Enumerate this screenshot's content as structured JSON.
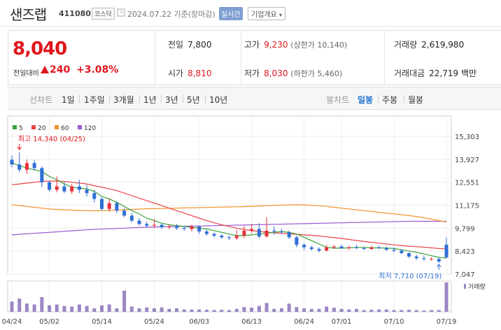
{
  "header": {
    "name": "샌즈랩",
    "code": "411080",
    "market": "코스닥",
    "date": "2024.07.22 기준(장마감)",
    "realtime": "실시간",
    "company_info": "기업개요"
  },
  "price": {
    "current": "8,040",
    "change_label": "전일대비",
    "change": "240",
    "change_pct": "+3.08%"
  },
  "stats": {
    "prev_label": "전일",
    "prev": "7,800",
    "high_label": "고가",
    "high": "9,230",
    "upper_limit": "(상한가 10,140)",
    "volume_label": "거래량",
    "volume": "2,619,980",
    "open_label": "시가",
    "open": "8,810",
    "low_label": "저가",
    "low": "8,030",
    "lower_limit": "(하한가 5,460)",
    "amount_label": "거래대금",
    "amount": "22,719",
    "amount_unit": "백만"
  },
  "period": {
    "line_label": "선차트",
    "line_items": [
      "1일",
      "1주일",
      "3개월",
      "1년",
      "3년",
      "5년",
      "10년"
    ],
    "candle_label": "봉차트",
    "candle_items": [
      "일봉",
      "주봉",
      "월봉"
    ],
    "selected": "일봉"
  },
  "chart_data": {
    "type": "candlestick",
    "legend": [
      "5",
      "20",
      "60",
      "120"
    ],
    "legend_colors": [
      "#3aa13a",
      "#e84545",
      "#f0932b",
      "#9b59d0"
    ],
    "up_color": "#e8303a",
    "down_color": "#2f6fd6",
    "volume_color": "#9b86c4",
    "y_ticks": [
      "15,303",
      "13,927",
      "12,551",
      "11,175",
      "9,799",
      "8,423",
      "7,047"
    ],
    "ylim": [
      7047,
      15303
    ],
    "x_labels": [
      "04/24",
      "05/02",
      "05/14",
      "05/24",
      "06/03",
      "06/13",
      "06/24",
      "07/01",
      "07/10",
      "07/19"
    ],
    "x_label_index": [
      0,
      5,
      12,
      19,
      25,
      32,
      39,
      44,
      51,
      58
    ],
    "high_note": "최고 14,340 (04/25)",
    "low_note": "최저 7,710 (07/19)",
    "volume_legend": "거래량",
    "candles": [
      [
        13900,
        14150,
        13450,
        13620
      ],
      [
        13620,
        14340,
        13150,
        13300
      ],
      [
        13300,
        13920,
        13050,
        13700
      ],
      [
        13700,
        13900,
        13250,
        13400
      ],
      [
        13400,
        13500,
        12250,
        12550
      ],
      [
        12550,
        12650,
        12000,
        12100
      ],
      [
        12100,
        12900,
        11950,
        12300
      ],
      [
        12300,
        12550,
        11900,
        12000
      ],
      [
        12000,
        12450,
        11850,
        12300
      ],
      [
        12300,
        12700,
        11900,
        12100
      ],
      [
        12100,
        12400,
        11700,
        11900
      ],
      [
        11900,
        12100,
        11350,
        11550
      ],
      [
        11550,
        11650,
        10850,
        10950
      ],
      [
        10950,
        11550,
        10800,
        11300
      ],
      [
        11300,
        11400,
        10700,
        10850
      ],
      [
        10850,
        11000,
        10450,
        10550
      ],
      [
        10550,
        10700,
        10150,
        10250
      ],
      [
        10250,
        10400,
        9950,
        10050
      ],
      [
        10050,
        10200,
        9800,
        9950
      ],
      [
        9950,
        10350,
        9800,
        10000
      ],
      [
        10000,
        10100,
        9750,
        9850
      ],
      [
        9850,
        10050,
        9750,
        9900
      ],
      [
        9900,
        10050,
        9700,
        9800
      ],
      [
        9800,
        9950,
        9650,
        9750
      ],
      [
        9750,
        10000,
        9600,
        9900
      ],
      [
        9900,
        9950,
        9450,
        9600
      ],
      [
        9600,
        9700,
        9350,
        9450
      ],
      [
        9450,
        9550,
        9250,
        9350
      ],
      [
        9350,
        9450,
        9150,
        9250
      ],
      [
        9250,
        9350,
        9100,
        9200
      ],
      [
        9200,
        9700,
        9100,
        9350
      ],
      [
        9350,
        9950,
        9200,
        9650
      ],
      [
        9650,
        10050,
        9500,
        9750
      ],
      [
        9750,
        10100,
        9200,
        9300
      ],
      [
        9300,
        10450,
        9250,
        9650
      ],
      [
        9650,
        9900,
        9400,
        9600
      ],
      [
        9600,
        9750,
        9450,
        9550
      ],
      [
        9550,
        9650,
        9150,
        9250
      ],
      [
        9250,
        9350,
        8650,
        8800
      ],
      [
        8800,
        8900,
        8500,
        8650
      ],
      [
        8650,
        8750,
        8450,
        8550
      ],
      [
        8550,
        8650,
        8350,
        8450
      ],
      [
        8450,
        8800,
        8400,
        8650
      ],
      [
        8650,
        8800,
        8550,
        8700
      ],
      [
        8700,
        8800,
        8550,
        8600
      ],
      [
        8600,
        8750,
        8500,
        8650
      ],
      [
        8650,
        8800,
        8550,
        8600
      ],
      [
        8600,
        8700,
        8500,
        8550
      ],
      [
        8550,
        8750,
        8500,
        8650
      ],
      [
        8650,
        8750,
        8550,
        8600
      ],
      [
        8600,
        8700,
        8450,
        8500
      ],
      [
        8500,
        8650,
        8350,
        8450
      ],
      [
        8450,
        8550,
        8250,
        8300
      ],
      [
        8300,
        8350,
        8000,
        8100
      ],
      [
        8100,
        8200,
        7900,
        8000
      ],
      [
        8000,
        8150,
        7850,
        7950
      ],
      [
        7950,
        8050,
        7850,
        7950
      ],
      [
        7950,
        8050,
        7710,
        7800
      ],
      [
        8810,
        9230,
        8030,
        8040
      ]
    ],
    "ma5": [
      13700,
      13550,
      13400,
      13300,
      13200,
      12900,
      12700,
      12450,
      12250,
      12200,
      12150,
      12000,
      11700,
      11550,
      11350,
      11100,
      10850,
      10650,
      10400,
      10250,
      10100,
      10000,
      9950,
      9900,
      9850,
      9800,
      9750,
      9650,
      9550,
      9450,
      9350,
      9350,
      9400,
      9450,
      9500,
      9550,
      9600,
      9550,
      9450,
      9250,
      9050,
      8850,
      8650,
      8600,
      8600,
      8620,
      8650,
      8650,
      8620,
      8620,
      8600,
      8580,
      8500,
      8420,
      8350,
      8250,
      8150,
      8050,
      8000
    ],
    "ma20": [
      12400,
      12450,
      12500,
      12550,
      12600,
      12620,
      12620,
      12600,
      12550,
      12500,
      12450,
      12350,
      12250,
      12150,
      12050,
      11900,
      11750,
      11600,
      11450,
      11300,
      11150,
      11000,
      10850,
      10700,
      10550,
      10400,
      10250,
      10120,
      10000,
      9900,
      9800,
      9720,
      9650,
      9600,
      9560,
      9520,
      9490,
      9460,
      9430,
      9400,
      9370,
      9330,
      9280,
      9230,
      9180,
      9120,
      9060,
      9000,
      8950,
      8900,
      8850,
      8800,
      8760,
      8720,
      8690,
      8660,
      8620,
      8580,
      8560
    ],
    "ma60": [
      11200,
      11150,
      11100,
      11050,
      11000,
      10950,
      10920,
      10900,
      10880,
      10860,
      10850,
      10840,
      10850,
      10860,
      10880,
      10900,
      10920,
      10940,
      10960,
      10970,
      10980,
      10990,
      11000,
      11010,
      11020,
      11030,
      11040,
      11050,
      11060,
      11070,
      11080,
      11090,
      11110,
      11130,
      11150,
      11170,
      11180,
      11190,
      11200,
      11190,
      11170,
      11140,
      11100,
      11050,
      11000,
      10950,
      10900,
      10850,
      10800,
      10750,
      10700,
      10650,
      10600,
      10550,
      10500,
      10420,
      10340,
      10250,
      10170
    ],
    "ma120": [
      9400,
      9430,
      9460,
      9490,
      9520,
      9550,
      9580,
      9610,
      9640,
      9670,
      9700,
      9720,
      9740,
      9760,
      9780,
      9800,
      9820,
      9840,
      9860,
      9870,
      9880,
      9890,
      9900,
      9910,
      9920,
      9930,
      9940,
      9950,
      9960,
      9970,
      9980,
      9990,
      10000,
      10010,
      10020,
      10030,
      10040,
      10050,
      10060,
      10070,
      10080,
      10090,
      10100,
      10110,
      10120,
      10130,
      10140,
      10150,
      10160,
      10170,
      10180,
      10190,
      10200,
      10210,
      10210,
      10210,
      10210,
      10210,
      10210
    ],
    "volume": [
      0.35,
      0.45,
      0.28,
      0.25,
      0.5,
      0.22,
      0.25,
      0.2,
      0.18,
      0.25,
      0.2,
      0.12,
      0.22,
      0.25,
      0.12,
      0.72,
      0.18,
      0.12,
      0.15,
      0.12,
      0.15,
      0.1,
      0.12,
      0.08,
      0.08,
      0.08,
      0.07,
      0.06,
      0.07,
      0.06,
      0.1,
      0.16,
      0.14,
      0.2,
      0.3,
      0.1,
      0.12,
      0.28,
      0.16,
      0.12,
      0.1,
      0.1,
      0.18,
      0.14,
      0.1,
      0.08,
      0.1,
      0.06,
      0.07,
      0.08,
      0.08,
      0.06,
      0.06,
      0.07,
      0.06,
      0.05,
      0.06,
      0.06,
      1.0
    ]
  }
}
